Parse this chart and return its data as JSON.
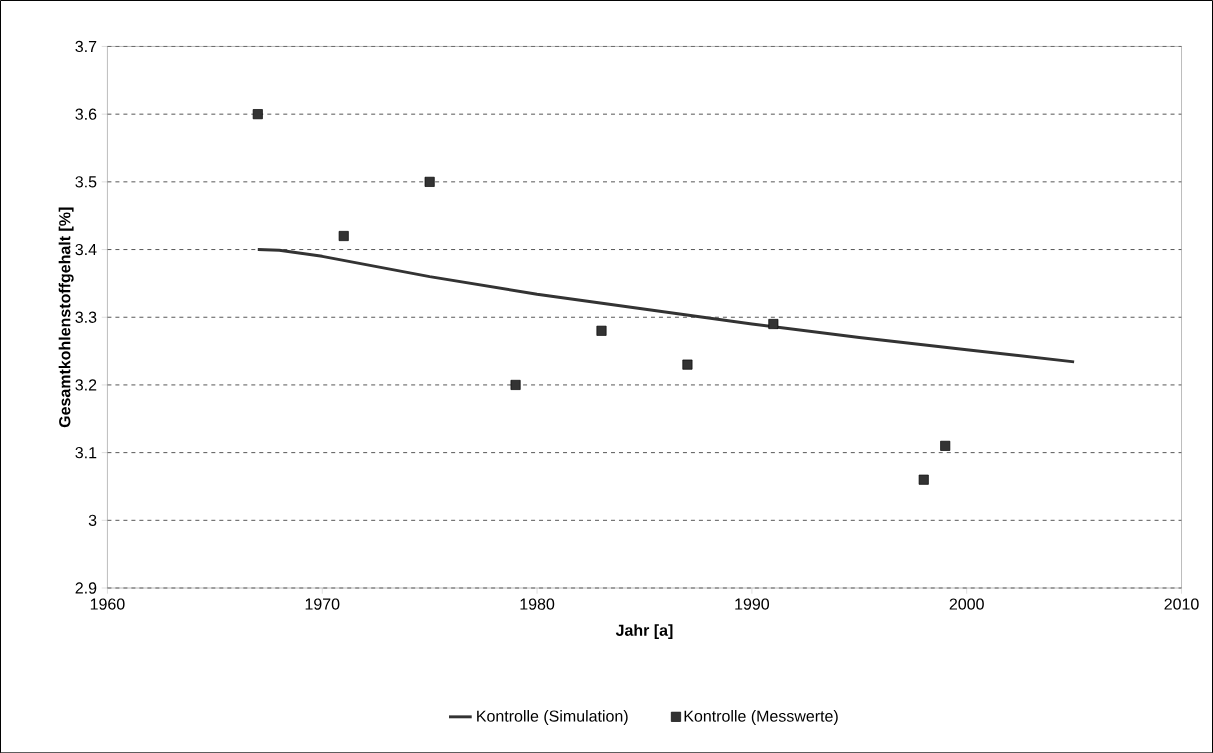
{
  "chart_data": {
    "type": "scatter",
    "xlabel": "Jahr [a]",
    "ylabel": "Gesamtkohlenstoffgehalt [%]",
    "xlim": [
      1960,
      2010
    ],
    "xticks": [
      1960,
      1970,
      1980,
      1990,
      2000,
      2010
    ],
    "ylim": [
      2.9,
      3.7
    ],
    "yticks": [
      2.9,
      3,
      3.1,
      3.2,
      3.3,
      3.4,
      3.5,
      3.6,
      3.7
    ],
    "grid": "y",
    "legend": "bottom",
    "series": [
      {
        "name": "Kontrolle (Simulation)",
        "type": "line",
        "color": "#333333",
        "marker": "none",
        "line_style": "solid",
        "x": [
          1967,
          1968,
          1970,
          1975,
          1980,
          1985,
          1990,
          1995,
          2000,
          2005
        ],
        "values": [
          3.4,
          3.399,
          3.39,
          3.36,
          3.334,
          3.312,
          3.29,
          3.27,
          3.252,
          3.234
        ]
      },
      {
        "name": "Kontrolle (Messwerte)",
        "color": "#333333",
        "marker": "square",
        "x": [
          1967,
          1971,
          1975,
          1979,
          1983,
          1987,
          1991,
          1998,
          1999
        ],
        "values": [
          3.6,
          3.42,
          3.5,
          3.2,
          3.28,
          3.23,
          3.29,
          3.06,
          3.11
        ]
      }
    ]
  }
}
